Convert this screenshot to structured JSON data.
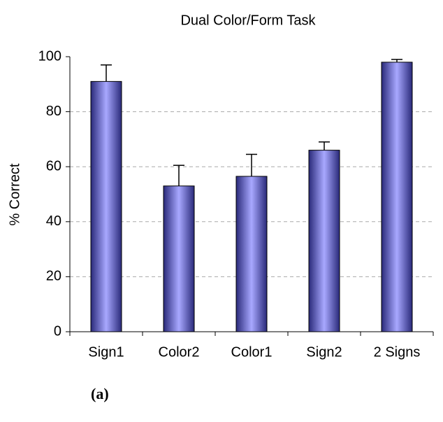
{
  "chart_data": {
    "type": "bar",
    "title": "Dual Color/Form Task",
    "y_label": "% Correct",
    "categories": [
      "Sign1",
      "Color2",
      "Color1",
      "Sign2",
      "2 Signs"
    ],
    "values": [
      91,
      53,
      56.5,
      66,
      98
    ],
    "errors": [
      6,
      7.5,
      8,
      3,
      1
    ],
    "color": "#8f8fef",
    "ylim": [
      0,
      100
    ],
    "yticks": [
      0,
      20,
      40,
      60,
      80,
      100
    ],
    "grid": true
  },
  "caption": "(a)"
}
